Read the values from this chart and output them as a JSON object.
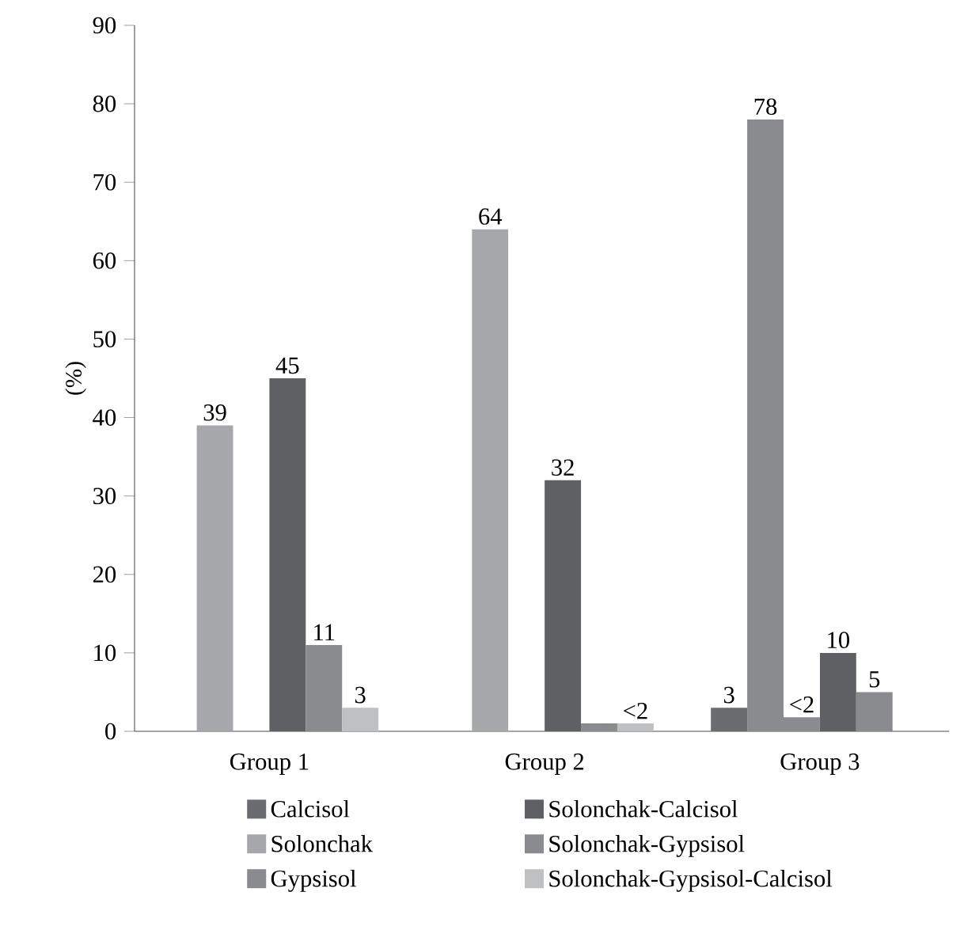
{
  "chart_data": {
    "type": "bar",
    "ylabel": "(%)",
    "categories": [
      "Group 1",
      "Group 2",
      "Group 3"
    ],
    "series": [
      {
        "name": "Calcisol",
        "color": "#6b6c70",
        "values": [
          null,
          null,
          3
        ],
        "value_labels": [
          null,
          null,
          "3"
        ]
      },
      {
        "name": "Solonchak",
        "color": "#a6a7ab",
        "colors": [
          "#a6a7ab",
          "#a6a7ab",
          "#8a8b8f"
        ],
        "values": [
          39,
          64,
          78
        ],
        "value_labels": [
          "39",
          "64",
          "78"
        ]
      },
      {
        "name": "Gypsisol",
        "color": "#8a8b8f",
        "values": [
          null,
          null,
          1.8
        ],
        "value_labels": [
          null,
          null,
          "<2"
        ]
      },
      {
        "name": "Solonchak-Calcisol",
        "color": "#5f6063",
        "values": [
          45,
          32,
          10
        ],
        "value_labels": [
          "45",
          "32",
          "10"
        ]
      },
      {
        "name": "Solonchak-Gypsisol",
        "color": "#8a8b8f",
        "values": [
          11,
          1,
          5
        ],
        "value_labels": [
          "11",
          null,
          "5"
        ]
      },
      {
        "name": "Solonchak-Gypsisol-Calcisol",
        "color": "#bfc0c2",
        "values": [
          3,
          1,
          null
        ],
        "value_labels": [
          "3",
          "<2",
          null
        ]
      }
    ],
    "ylim": [
      0,
      90
    ],
    "yticks": [
      0,
      10,
      20,
      30,
      40,
      50,
      60,
      70,
      80,
      90
    ],
    "grid": false,
    "legend": "bottom"
  }
}
